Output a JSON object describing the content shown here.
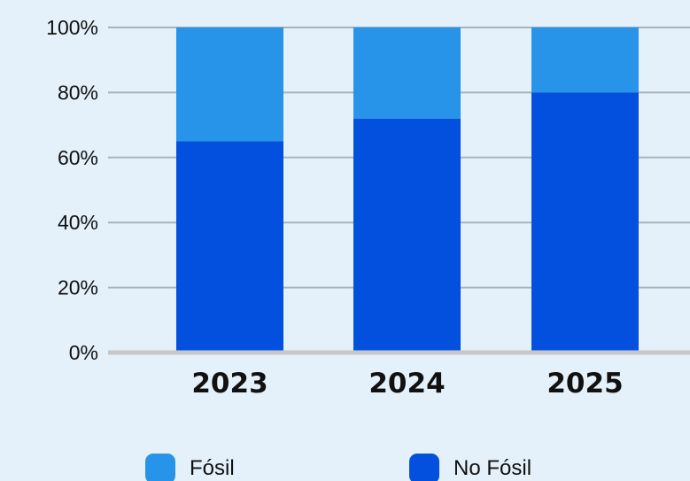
{
  "chart_data": {
    "type": "bar",
    "stacked": true,
    "title": "",
    "xlabel": "",
    "ylabel": "",
    "categories": [
      "2023",
      "2024",
      "2025"
    ],
    "series": [
      {
        "name": "No Fósil",
        "values": [
          65,
          72,
          80
        ],
        "color": "#0450de"
      },
      {
        "name": "Fósil",
        "values": [
          35,
          28,
          20
        ],
        "color": "#2794ea"
      }
    ],
    "ylim": [
      0,
      100
    ],
    "yticks": [
      0,
      20,
      40,
      60,
      80,
      100
    ],
    "ytick_labels": [
      "0%",
      "20%",
      "40%",
      "60%",
      "80%",
      "100%"
    ],
    "grid": true,
    "legend": {
      "position": "bottom",
      "items": [
        {
          "label": "Fósil",
          "color": "#2794ea"
        },
        {
          "label": "No Fósil",
          "color": "#0450de"
        }
      ]
    },
    "background_color": "#e4f1fb",
    "gridline_color": "#a7b3be",
    "baseline_color": "#c7c7c7"
  }
}
